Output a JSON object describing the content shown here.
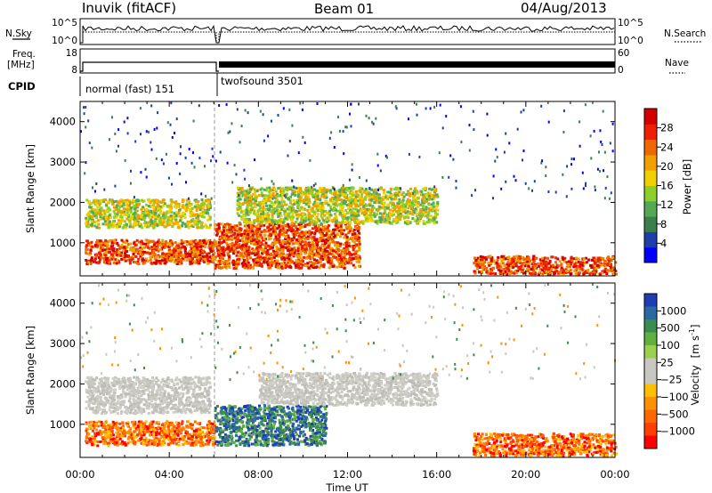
{
  "header": {
    "station": "Inuvik (fitACF)",
    "beam": "Beam 01",
    "date": "04/Aug/2013"
  },
  "top_panel": {
    "left_labels": {
      "nsky": "N.Sky",
      "freq": "Freq.",
      "freq_unit": "[MHz]",
      "cpid": "CPID"
    },
    "right_labels": {
      "nsearch": "N.Search",
      "nave": "Nave"
    },
    "noise_ticks_left": [
      "10^5",
      "10^0"
    ],
    "noise_ticks_right": [
      "10^5",
      "10^0"
    ],
    "freq_ticks": [
      "18",
      "8"
    ],
    "nave_ticks": [
      "60",
      "0"
    ],
    "cpid_segments": [
      {
        "label": "normal (fast) 151",
        "start_hour": 0.0,
        "end_hour": 6.0
      },
      {
        "label": "twofsound 3501",
        "start_hour": 6.0,
        "end_hour": 24.0
      }
    ]
  },
  "chart_data": [
    {
      "type": "heatmap",
      "name": "power-panel",
      "xlabel": "",
      "ylabel": "Slant Range [km]",
      "xlim": [
        0,
        24
      ],
      "ylim": [
        180,
        4500
      ],
      "yticks": [
        1000,
        2000,
        3000,
        4000
      ],
      "colorbar": {
        "label": "Power [dB]",
        "ticks": [
          4,
          8,
          12,
          16,
          20,
          24,
          28
        ],
        "range": [
          0,
          32
        ],
        "colors": [
          "#0000ff",
          "#1f3fa8",
          "#3b7f4c",
          "#55a855",
          "#8ccf2a",
          "#f0d000",
          "#f0a000",
          "#ee6a00",
          "#ee2000",
          "#d40000"
        ]
      },
      "features": [
        {
          "start_hour": 0.2,
          "end_hour": 6.0,
          "range_km": [
            500,
            1100
          ],
          "level": "high"
        },
        {
          "start_hour": 0.2,
          "end_hour": 5.8,
          "range_km": [
            1400,
            2100
          ],
          "level": "medium"
        },
        {
          "start_hour": 6.0,
          "end_hour": 12.5,
          "range_km": [
            400,
            1500
          ],
          "level": "high"
        },
        {
          "start_hour": 7.0,
          "end_hour": 16.0,
          "range_km": [
            1500,
            2400
          ],
          "level": "medium"
        },
        {
          "start_hour": 17.6,
          "end_hour": 24.0,
          "range_km": [
            250,
            700
          ],
          "level": "high"
        }
      ]
    },
    {
      "type": "heatmap",
      "name": "velocity-panel",
      "xlabel": "Time UT",
      "ylabel": "Slant Range [km]",
      "xlim": [
        0,
        24
      ],
      "ylim": [
        180,
        4500
      ],
      "xticks": [
        "00:00",
        "04:00",
        "08:00",
        "12:00",
        "16:00",
        "20:00",
        "00:00"
      ],
      "yticks": [
        1000,
        2000,
        3000,
        4000
      ],
      "colorbar": {
        "label": "Velocity",
        "unit": "[m s",
        "unit_sup": "-1",
        "unit_end": "]",
        "ticks": [
          "1000",
          "500",
          "100",
          "25",
          "−25",
          "−100",
          "−500",
          "−1000"
        ],
        "colors": [
          "#1e3cb4",
          "#2a6aa0",
          "#3c8c50",
          "#62b040",
          "#9ad050",
          "#c8c8c0",
          "#c8c8c0",
          "#ffc000",
          "#ff9000",
          "#ff6800",
          "#ff4000",
          "#ff0000"
        ]
      },
      "features": [
        {
          "start_hour": 0.2,
          "end_hour": 6.0,
          "range_km": [
            500,
            1100
          ],
          "class": "negative"
        },
        {
          "start_hour": 0.2,
          "end_hour": 5.8,
          "range_km": [
            1300,
            2200
          ],
          "class": "ground"
        },
        {
          "start_hour": 6.0,
          "end_hour": 11.0,
          "range_km": [
            500,
            1500
          ],
          "class": "positive"
        },
        {
          "start_hour": 8.0,
          "end_hour": 16.0,
          "range_km": [
            1500,
            2300
          ],
          "class": "ground"
        },
        {
          "start_hour": 17.6,
          "end_hour": 24.0,
          "range_km": [
            250,
            800
          ],
          "class": "negative"
        }
      ]
    }
  ]
}
